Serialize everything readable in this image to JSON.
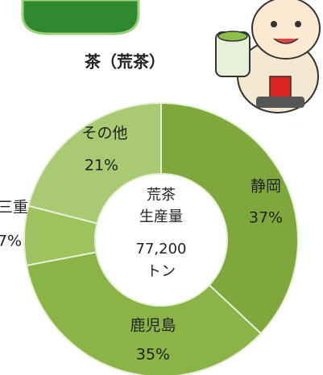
{
  "chart_data": {
    "type": "donut",
    "title": "茶（荒茶）",
    "categories": [
      "静岡",
      "鹿児島",
      "三重",
      "その他"
    ],
    "values": [
      37,
      35,
      7,
      21
    ],
    "value_labels": [
      "37%",
      "35%",
      "7%",
      "21%"
    ],
    "colors": [
      "#7fa83c",
      "#8bb447",
      "#9dc25e",
      "#a9c972"
    ],
    "center_label": [
      "荒茶",
      "生産量",
      "77,200",
      "トン"
    ]
  }
}
